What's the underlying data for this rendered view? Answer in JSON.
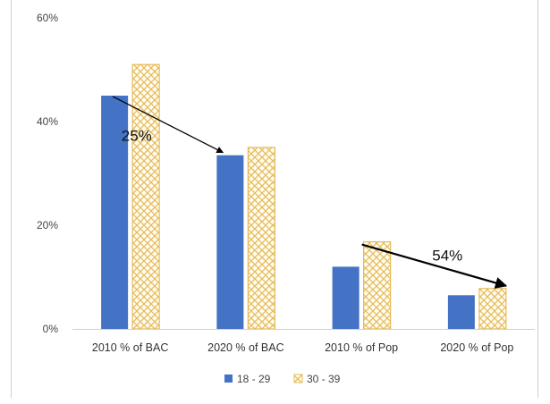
{
  "chart_data": {
    "type": "bar",
    "categories": [
      "2010 % of BAC",
      "2020 % of BAC",
      "2010 %  of Pop",
      "2020 % of Pop"
    ],
    "series": [
      {
        "name": "18 - 29",
        "values": [
          45,
          33.5,
          12,
          6.5
        ],
        "color": "#4472c4",
        "pattern": "solid"
      },
      {
        "name": "30 - 39",
        "values": [
          51,
          35,
          16.8,
          7.8
        ],
        "color": "#f2c14e",
        "pattern": "crosshatch"
      }
    ],
    "ylim": [
      0,
      60
    ],
    "yticks": [
      "0%",
      "20%",
      "40%",
      "60%"
    ],
    "grid": false,
    "legend": "bottom",
    "annotations": [
      {
        "text": "25%",
        "from": {
          "category": 0,
          "value": 45
        },
        "to": {
          "category": 1,
          "value": 33.5
        }
      },
      {
        "text": "54%",
        "from": {
          "category": 2,
          "value": 16.8
        },
        "to": {
          "category": 3,
          "value": 7.8
        }
      }
    ]
  }
}
